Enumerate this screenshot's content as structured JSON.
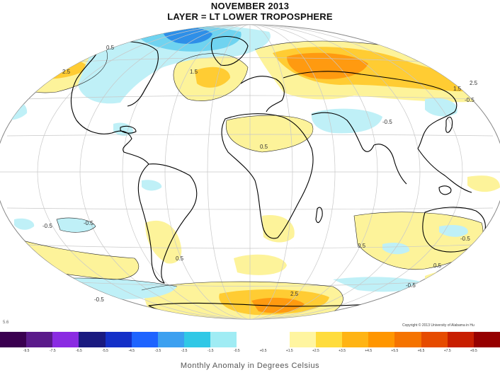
{
  "title": {
    "line1": "NOVEMBER 2013",
    "line2": "LAYER = LT LOWER TROPOSPHERE"
  },
  "contour_labels": [
    "2.5",
    "1.5",
    "2.5",
    "0.5",
    "-0.5",
    "0.5",
    "-0.5",
    "-0.5",
    "0.5",
    "-0.5",
    "0.5",
    "-0.5",
    "1.5",
    "-0.5",
    "-0.5",
    "2.5",
    "0.5"
  ],
  "copyright": "Copyright © 2013 University of Alabama in Hu",
  "scale_left": "5.6",
  "colorbar": {
    "colors": [
      "#3a0050",
      "#5a1a8a",
      "#8a2be2",
      "#1a1a80",
      "#1430c8",
      "#1e64ff",
      "#3ca0f0",
      "#30c8e6",
      "#a0ecf4",
      "#ffffff",
      "#ffffff",
      "#fff5a0",
      "#ffdc3c",
      "#ffb414",
      "#ff9600",
      "#f57300",
      "#e64b00",
      "#c81e00",
      "#960000"
    ],
    "ticks": [
      "-9.5",
      "-7.5",
      "-6.5",
      "-5.5",
      "-4.5",
      "-3.5",
      "-2.5",
      "-1.5",
      "-0.5",
      "+0.5",
      "+1.5",
      "+2.5",
      "+3.5",
      "+4.5",
      "+5.5",
      "+6.5",
      "+7.5",
      "+9.5"
    ]
  },
  "caption": "Monthly Anomaly in Degrees Celsius",
  "colors": {
    "warm_light": "#fdf39a",
    "warm_mid": "#ffcc33",
    "warm_strong": "#ff9a10",
    "cool_light": "#bff0f7",
    "cool_mid": "#6fd3f0",
    "cool_strong": "#2e8fe8",
    "coast": "#000000",
    "grid": "#bfbfbf"
  }
}
